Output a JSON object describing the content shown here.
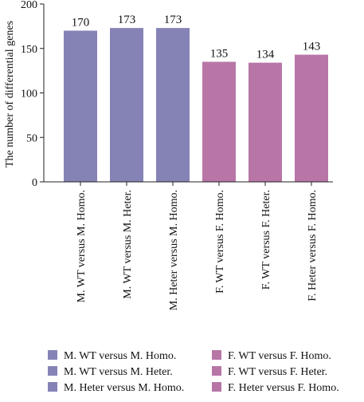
{
  "chart_data": {
    "type": "bar",
    "title": "",
    "xlabel": "",
    "ylabel": "The number of differential genes",
    "ylim": [
      0,
      200
    ],
    "yticks": [
      0,
      50,
      100,
      150,
      200
    ],
    "grid": false,
    "legend_position": "bottom",
    "categories": [
      "M. WT versus M. Homo.",
      "M. WT versus M. Heter.",
      "M. Heter versus M. Homo.",
      "F. WT versus F. Homo.",
      "F. WT versus F. Heter.",
      "F. Heter versus F. Homo."
    ],
    "values": [
      170,
      173,
      173,
      135,
      134,
      143
    ],
    "data_labels": [
      "170",
      "173",
      "173",
      "135",
      "134",
      "143"
    ],
    "colors": [
      "#8583b6",
      "#8583b6",
      "#8583b6",
      "#b876a6",
      "#b876a6",
      "#b876a6"
    ],
    "legend": [
      {
        "label": "M. WT versus M. Homo.",
        "color": "#8583b6"
      },
      {
        "label": "M. WT versus M. Heter.",
        "color": "#8583b6"
      },
      {
        "label": "M. Heter versus M. Homo.",
        "color": "#8583b6"
      },
      {
        "label": "F. WT versus F. Homo.",
        "color": "#b876a6"
      },
      {
        "label": "F. WT versus F. Heter.",
        "color": "#b876a6"
      },
      {
        "label": "F. Heter versus F. Homo.",
        "color": "#b876a6"
      }
    ]
  }
}
